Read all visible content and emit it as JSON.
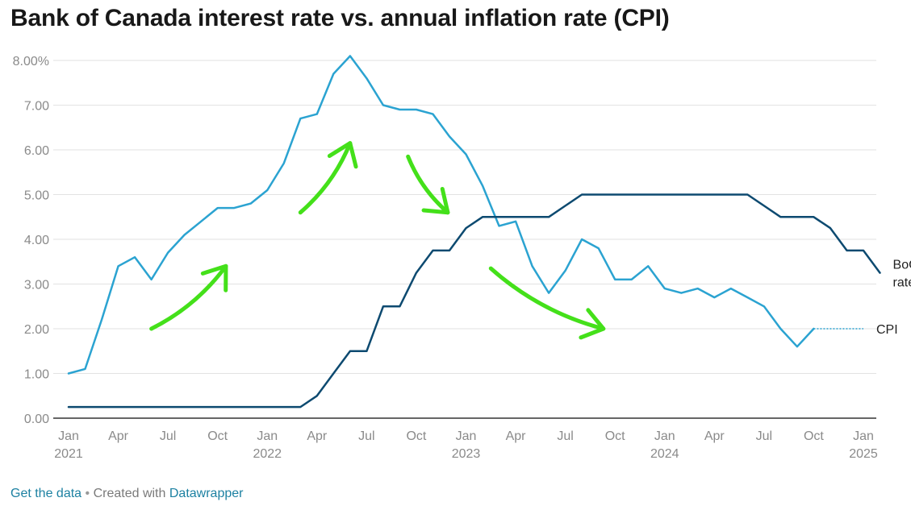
{
  "chart_data": {
    "type": "line",
    "title": "Bank of Canada interest rate vs. annual inflation rate (CPI)",
    "x_start": "2021-01",
    "x_end": "2025-01",
    "ylim": [
      0,
      8
    ],
    "y_ticks": [
      {
        "value": 0,
        "label": "0.00"
      },
      {
        "value": 1,
        "label": "1.00"
      },
      {
        "value": 2,
        "label": "2.00"
      },
      {
        "value": 3,
        "label": "3.00"
      },
      {
        "value": 4,
        "label": "4.00"
      },
      {
        "value": 5,
        "label": "5.00"
      },
      {
        "value": 6,
        "label": "6.00"
      },
      {
        "value": 7,
        "label": "7.00"
      },
      {
        "value": 8,
        "label": "8.00%"
      }
    ],
    "x_ticks": [
      {
        "month": 0,
        "label": "Jan",
        "year": "2021"
      },
      {
        "month": 3,
        "label": "Apr",
        "year": ""
      },
      {
        "month": 6,
        "label": "Jul",
        "year": ""
      },
      {
        "month": 9,
        "label": "Oct",
        "year": ""
      },
      {
        "month": 12,
        "label": "Jan",
        "year": "2022"
      },
      {
        "month": 15,
        "label": "Apr",
        "year": ""
      },
      {
        "month": 18,
        "label": "Jul",
        "year": ""
      },
      {
        "month": 21,
        "label": "Oct",
        "year": ""
      },
      {
        "month": 24,
        "label": "Jan",
        "year": "2023"
      },
      {
        "month": 27,
        "label": "Apr",
        "year": ""
      },
      {
        "month": 30,
        "label": "Jul",
        "year": ""
      },
      {
        "month": 33,
        "label": "Oct",
        "year": ""
      },
      {
        "month": 36,
        "label": "Jan",
        "year": "2024"
      },
      {
        "month": 39,
        "label": "Apr",
        "year": ""
      },
      {
        "month": 42,
        "label": "Jul",
        "year": ""
      },
      {
        "month": 45,
        "label": "Oct",
        "year": ""
      },
      {
        "month": 48,
        "label": "Jan",
        "year": "2025"
      }
    ],
    "series": [
      {
        "name": "CPI",
        "label_lines": [
          "CPI"
        ],
        "color": "#2ba3d1",
        "values": [
          1.0,
          1.1,
          2.2,
          3.4,
          3.6,
          3.1,
          3.7,
          4.1,
          4.4,
          4.7,
          4.7,
          4.8,
          5.1,
          5.7,
          6.7,
          6.8,
          7.7,
          8.1,
          7.6,
          7.0,
          6.9,
          6.9,
          6.8,
          6.3,
          5.9,
          5.2,
          4.3,
          4.4,
          3.4,
          2.8,
          3.3,
          4.0,
          3.8,
          3.1,
          3.1,
          3.4,
          2.9,
          2.8,
          2.9,
          2.7,
          2.9,
          2.7,
          2.5,
          2.0,
          1.6,
          2.0
        ],
        "extension_to": 48,
        "extension_value": 2.0
      },
      {
        "name": "BoC rate",
        "label_lines": [
          "BoC",
          "rate"
        ],
        "color": "#0d4a70",
        "values": [
          0.25,
          0.25,
          0.25,
          0.25,
          0.25,
          0.25,
          0.25,
          0.25,
          0.25,
          0.25,
          0.25,
          0.25,
          0.25,
          0.25,
          0.25,
          0.5,
          1.0,
          1.5,
          1.5,
          2.5,
          2.5,
          3.25,
          3.75,
          3.75,
          4.25,
          4.5,
          4.5,
          4.5,
          4.5,
          4.5,
          4.75,
          5.0,
          5.0,
          5.0,
          5.0,
          5.0,
          5.0,
          5.0,
          5.0,
          5.0,
          5.0,
          5.0,
          4.75,
          4.5,
          4.5,
          4.5,
          4.25,
          3.75,
          3.75,
          3.25
        ]
      }
    ],
    "annotations": [
      {
        "type": "hand-drawn-arrow",
        "color": "#44e01a",
        "from": {
          "month": 5,
          "value": 2.0
        },
        "to": {
          "month": 9.5,
          "value": 3.4
        }
      },
      {
        "type": "hand-drawn-arrow",
        "color": "#44e01a",
        "from": {
          "month": 14,
          "value": 4.6
        },
        "to": {
          "month": 17,
          "value": 6.15
        }
      },
      {
        "type": "hand-drawn-arrow",
        "color": "#44e01a",
        "from": {
          "month": 20.5,
          "value": 5.85
        },
        "to": {
          "month": 22.9,
          "value": 4.6
        }
      },
      {
        "type": "hand-drawn-arrow",
        "color": "#44e01a",
        "from": {
          "month": 25.5,
          "value": 3.35
        },
        "to": {
          "month": 32.3,
          "value": 2.0
        }
      }
    ]
  },
  "footer": {
    "get_data": "Get the data",
    "separator": "•",
    "created_with": "Created with",
    "tool": "Datawrapper"
  }
}
